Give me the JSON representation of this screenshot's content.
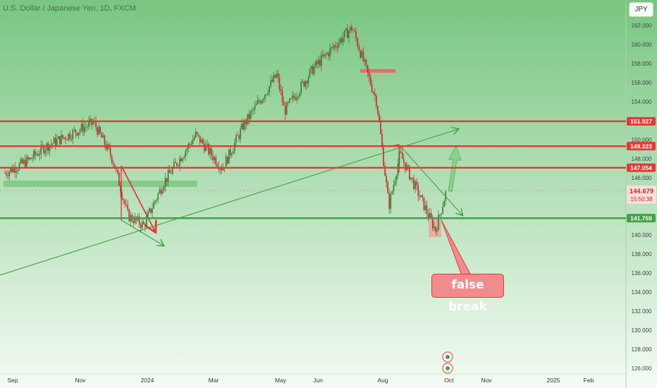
{
  "header": {
    "title": "U.S. Dollar / Japanese Yen, 1D, FXCM",
    "currency_button": "JPY"
  },
  "annotation": {
    "false_break_label": "false break"
  },
  "colors": {
    "background": "#7fcb86",
    "resistance_line": "#e53935",
    "support_line": "#43a047",
    "callout_fill": "#f28c8c"
  },
  "chart_data": {
    "type": "candlestick",
    "x_tick_labels": [
      "Sep",
      "Nov",
      "2024",
      "Mar",
      "May",
      "Jun",
      "Aug",
      "Oct",
      "Nov",
      "2025",
      "Feb"
    ],
    "y_tick_labels": [
      "162.000",
      "160.000",
      "158.000",
      "156.000",
      "154.000",
      "152.000",
      "150.000",
      "148.000",
      "146.000",
      "144.000",
      "142.000",
      "140.000",
      "138.000",
      "136.000",
      "134.000",
      "132.000",
      "130.000",
      "128.000",
      "126.000"
    ],
    "ylim": [
      125.5,
      163.5
    ],
    "horizontal_levels": [
      {
        "label": "151.927",
        "value": 151.927,
        "color": "#e53935"
      },
      {
        "label": "149.323",
        "value": 149.323,
        "color": "#e53935"
      },
      {
        "label": "147.054",
        "value": 147.054,
        "color": "#e53935"
      },
      {
        "label": "141.759",
        "value": 141.759,
        "color": "#43a047"
      }
    ],
    "current_price": {
      "label": "144.679",
      "countdown": "15:50:38"
    },
    "price_path": [
      {
        "date": "2023-08-25",
        "close": 146.5
      },
      {
        "date": "2023-09-15",
        "close": 147.8
      },
      {
        "date": "2023-10-01",
        "close": 149.3
      },
      {
        "date": "2023-11-13",
        "close": 151.8
      },
      {
        "date": "2023-11-30",
        "close": 148.0
      },
      {
        "date": "2023-12-14",
        "close": 142.0
      },
      {
        "date": "2023-12-28",
        "close": 141.0
      },
      {
        "date": "2024-01-15",
        "close": 145.5
      },
      {
        "date": "2024-02-13",
        "close": 150.5
      },
      {
        "date": "2024-03-08",
        "close": 147.0
      },
      {
        "date": "2024-03-27",
        "close": 151.5
      },
      {
        "date": "2024-04-26",
        "close": 156.8
      },
      {
        "date": "2024-05-03",
        "close": 153.0
      },
      {
        "date": "2024-05-29",
        "close": 157.5
      },
      {
        "date": "2024-07-03",
        "close": 161.8
      },
      {
        "date": "2024-07-25",
        "close": 154.0
      },
      {
        "date": "2024-08-05",
        "close": 143.0
      },
      {
        "date": "2024-08-15",
        "close": 148.5
      },
      {
        "date": "2024-09-16",
        "close": 140.5
      },
      {
        "date": "2024-09-26",
        "close": 144.7
      }
    ]
  }
}
